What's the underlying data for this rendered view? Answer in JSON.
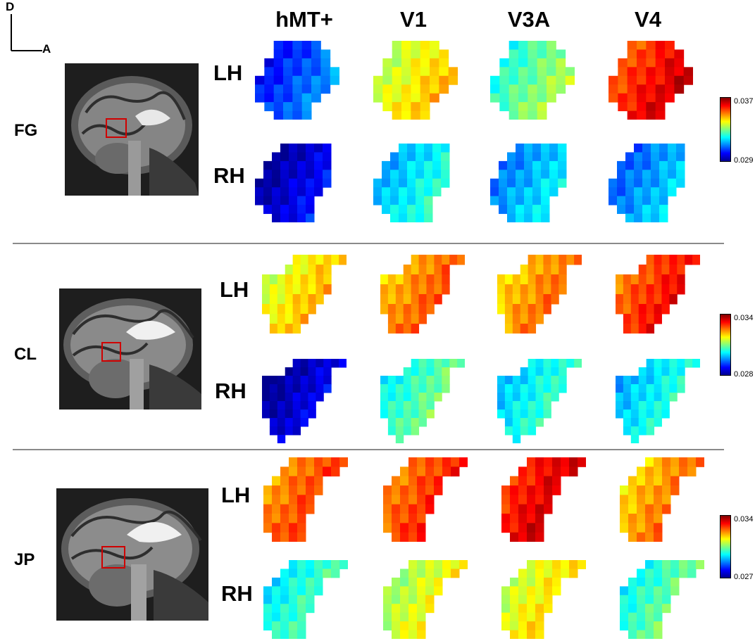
{
  "orientation": {
    "dorsal_label": "D",
    "anterior_label": "A"
  },
  "columns": [
    "hMT+",
    "V1",
    "V3A",
    "V4"
  ],
  "colormap": [
    "#00008f",
    "#0000ff",
    "#0080ff",
    "#00ffff",
    "#80ff80",
    "#ffff00",
    "#ff8000",
    "#ff0000",
    "#800000"
  ],
  "subjects": [
    {
      "name": "FG",
      "hemispheres": [
        "LH",
        "RH"
      ],
      "colorbar": {
        "max": "0.037",
        "min": "0.029"
      },
      "maps": {
        "LH": [
          0.22,
          0.65,
          0.5,
          0.88
        ],
        "RH": [
          0.1,
          0.38,
          0.33,
          0.3
        ]
      }
    },
    {
      "name": "CL",
      "hemispheres": [
        "LH",
        "RH"
      ],
      "colorbar": {
        "max": "0.034",
        "min": "0.028"
      },
      "maps": {
        "LH": [
          0.68,
          0.78,
          0.76,
          0.86
        ],
        "RH": [
          0.1,
          0.48,
          0.42,
          0.4
        ]
      }
    },
    {
      "name": "JP",
      "hemispheres": [
        "LH",
        "RH"
      ],
      "colorbar": {
        "max": "0.034",
        "min": "0.027"
      },
      "maps": {
        "LH": [
          0.82,
          0.84,
          0.92,
          0.76
        ],
        "RH": [
          0.45,
          0.62,
          0.66,
          0.48
        ]
      }
    }
  ]
}
